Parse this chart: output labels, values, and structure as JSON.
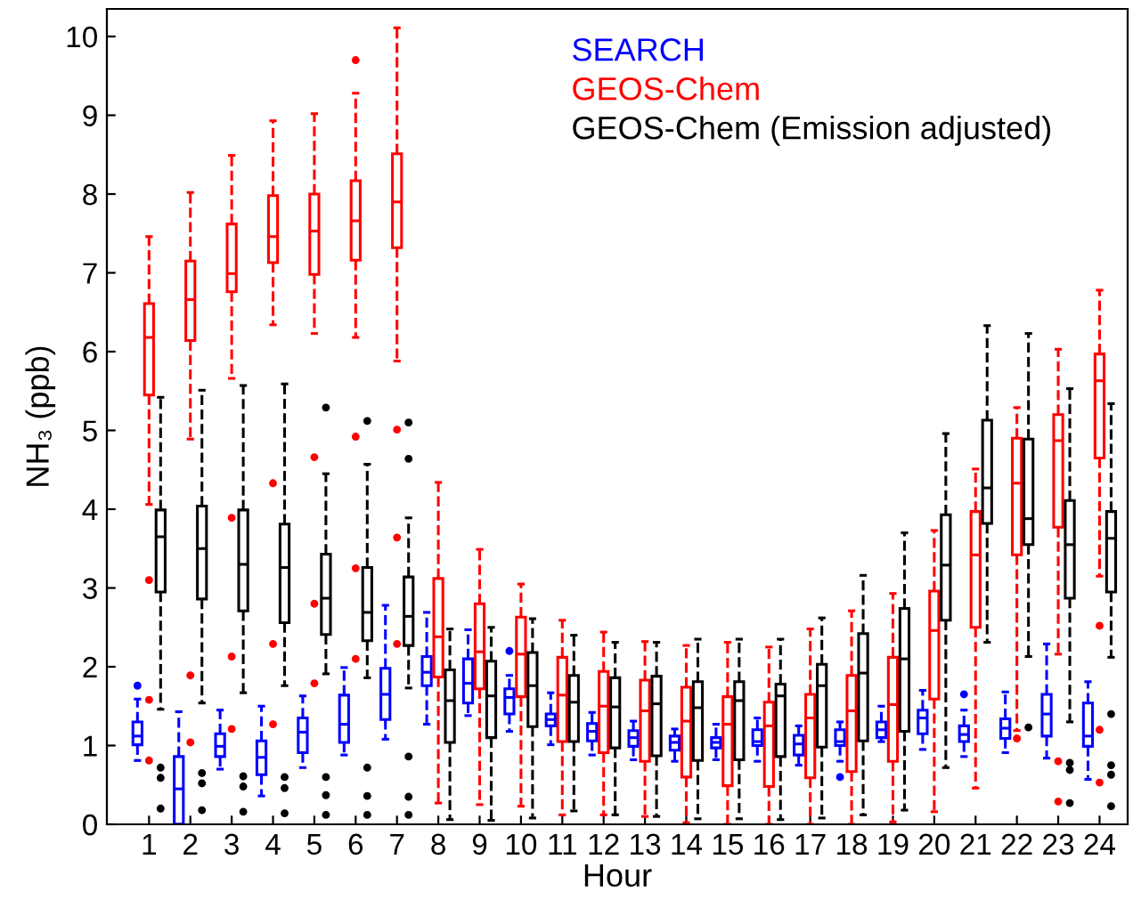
{
  "chart_data": {
    "type": "box",
    "xlabel": "Hour",
    "ylabel": "NH₃ (ppb)",
    "categories": [
      "1",
      "2",
      "3",
      "4",
      "5",
      "6",
      "7",
      "8",
      "9",
      "10",
      "11",
      "12",
      "13",
      "14",
      "15",
      "16",
      "17",
      "18",
      "19",
      "20",
      "21",
      "22",
      "23",
      "24"
    ],
    "ylim": [
      0,
      10.35
    ],
    "yticks": [
      0,
      1,
      2,
      3,
      4,
      5,
      6,
      7,
      8,
      9,
      10
    ],
    "grid": false,
    "line_style": "dashed",
    "series": [
      {
        "name": "SEARCH",
        "color": "#0000ff",
        "boxes": [
          {
            "low": 0.81,
            "q1": 1.01,
            "median": 1.12,
            "q3": 1.3,
            "high": 1.59,
            "outliers": [
              1.76
            ]
          },
          {
            "low": 0,
            "q1": 0,
            "median": 0.45,
            "q3": 0.86,
            "high": 1.43
          },
          {
            "low": 0.7,
            "q1": 0.86,
            "median": 0.99,
            "q3": 1.15,
            "high": 1.45
          },
          {
            "low": 0.36,
            "q1": 0.63,
            "median": 0.85,
            "q3": 1.06,
            "high": 1.5
          },
          {
            "low": 0.72,
            "q1": 0.91,
            "median": 1.17,
            "q3": 1.35,
            "high": 1.63
          },
          {
            "low": 0.88,
            "q1": 1.04,
            "median": 1.27,
            "q3": 1.64,
            "high": 1.99
          },
          {
            "low": 1.08,
            "q1": 1.33,
            "median": 1.65,
            "q3": 1.98,
            "high": 2.78
          },
          {
            "low": 1.27,
            "q1": 1.76,
            "median": 1.93,
            "q3": 2.13,
            "high": 2.69
          },
          {
            "low": 1.38,
            "q1": 1.54,
            "median": 1.79,
            "q3": 2.1,
            "high": 2.47
          },
          {
            "low": 1.18,
            "q1": 1.4,
            "median": 1.61,
            "q3": 1.72,
            "high": 1.89,
            "outliers": [
              2.2
            ]
          },
          {
            "low": 1.01,
            "q1": 1.25,
            "median": 1.33,
            "q3": 1.4,
            "high": 1.67
          },
          {
            "low": 0.88,
            "q1": 1.06,
            "median": 1.18,
            "q3": 1.28,
            "high": 1.42
          },
          {
            "low": 0.82,
            "q1": 0.99,
            "median": 1.1,
            "q3": 1.19,
            "high": 1.31
          },
          {
            "low": 0.8,
            "q1": 0.94,
            "median": 1.04,
            "q3": 1.12,
            "high": 1.21
          },
          {
            "low": 0.82,
            "q1": 0.97,
            "median": 1.04,
            "q3": 1.1,
            "high": 1.27
          },
          {
            "low": 0.8,
            "q1": 1.0,
            "median": 1.05,
            "q3": 1.2,
            "high": 1.35
          },
          {
            "low": 0.75,
            "q1": 0.88,
            "median": 1.02,
            "q3": 1.13,
            "high": 1.25
          },
          {
            "low": 0.8,
            "q1": 1.0,
            "median": 1.05,
            "q3": 1.2,
            "high": 1.3,
            "outliers": [
              0.6
            ]
          },
          {
            "low": 1.05,
            "q1": 1.1,
            "median": 1.2,
            "q3": 1.3,
            "high": 1.5
          },
          {
            "low": 0.95,
            "q1": 1.15,
            "median": 1.35,
            "q3": 1.45,
            "high": 1.7
          },
          {
            "low": 0.86,
            "q1": 1.05,
            "median": 1.14,
            "q3": 1.25,
            "high": 1.45,
            "outliers": [
              1.65
            ]
          },
          {
            "low": 0.91,
            "q1": 1.09,
            "median": 1.22,
            "q3": 1.34,
            "high": 1.68
          },
          {
            "low": 0.84,
            "q1": 1.12,
            "median": 1.4,
            "q3": 1.65,
            "high": 2.29
          },
          {
            "low": 0.57,
            "q1": 0.99,
            "median": 1.12,
            "q3": 1.54,
            "high": 1.81
          }
        ]
      },
      {
        "name": "GEOS-Chem",
        "color": "#ff0000",
        "boxes": [
          {
            "low": 4.06,
            "q1": 5.45,
            "median": 6.18,
            "q3": 6.61,
            "high": 7.46,
            "outliers": [
              3.1,
              1.58,
              0.81
            ]
          },
          {
            "low": 4.89,
            "q1": 6.14,
            "median": 6.66,
            "q3": 7.15,
            "high": 8.02,
            "outliers": [
              1.89,
              1.04
            ]
          },
          {
            "low": 5.66,
            "q1": 6.76,
            "median": 6.99,
            "q3": 7.62,
            "high": 8.49,
            "outliers": [
              3.89,
              2.13,
              1.21
            ]
          },
          {
            "low": 6.34,
            "q1": 7.13,
            "median": 7.46,
            "q3": 7.98,
            "high": 8.93,
            "outliers": [
              4.33,
              2.29,
              1.27
            ]
          },
          {
            "low": 6.23,
            "q1": 6.98,
            "median": 7.53,
            "q3": 8.0,
            "high": 9.02,
            "outliers": [
              4.66,
              2.8,
              1.79
            ]
          },
          {
            "low": 6.18,
            "q1": 7.16,
            "median": 7.66,
            "q3": 8.17,
            "high": 9.28,
            "outliers": [
              9.7,
              4.92,
              3.25,
              2.1
            ]
          },
          {
            "low": 5.88,
            "q1": 7.32,
            "median": 7.9,
            "q3": 8.51,
            "high": 10.11,
            "outliers": [
              5.01,
              3.64,
              2.29
            ]
          },
          {
            "low": 0.27,
            "q1": 1.87,
            "median": 2.38,
            "q3": 3.12,
            "high": 4.34
          },
          {
            "low": 0.25,
            "q1": 1.72,
            "median": 2.19,
            "q3": 2.8,
            "high": 3.49
          },
          {
            "low": 0.23,
            "q1": 1.62,
            "median": 2.16,
            "q3": 2.63,
            "high": 3.05
          },
          {
            "low": 0.12,
            "q1": 1.05,
            "median": 1.64,
            "q3": 2.12,
            "high": 2.59
          },
          {
            "low": 0.12,
            "q1": 0.91,
            "median": 1.5,
            "q3": 1.94,
            "high": 2.44
          },
          {
            "low": 0.1,
            "q1": 0.8,
            "median": 1.44,
            "q3": 1.83,
            "high": 2.32
          },
          {
            "low": 0.02,
            "q1": 0.6,
            "median": 1.31,
            "q3": 1.74,
            "high": 2.27
          },
          {
            "low": 0,
            "q1": 0.49,
            "median": 1.27,
            "q3": 1.62,
            "high": 2.31
          },
          {
            "low": 0,
            "q1": 0.48,
            "median": 1.25,
            "q3": 1.55,
            "high": 2.25
          },
          {
            "low": 0,
            "q1": 0.59,
            "median": 1.35,
            "q3": 1.65,
            "high": 2.48
          },
          {
            "low": 0,
            "q1": 0.67,
            "median": 1.44,
            "q3": 1.89,
            "high": 2.71
          },
          {
            "low": 0.03,
            "q1": 0.8,
            "median": 1.52,
            "q3": 2.12,
            "high": 2.93
          },
          {
            "low": 0.16,
            "q1": 1.59,
            "median": 2.46,
            "q3": 2.96,
            "high": 3.73
          },
          {
            "low": 0.46,
            "q1": 2.5,
            "median": 3.42,
            "q3": 3.97,
            "high": 4.51
          },
          {
            "low": 1.19,
            "q1": 3.42,
            "median": 4.33,
            "q3": 4.9,
            "high": 5.29,
            "outliers": [
              1.09
            ]
          },
          {
            "low": 2.16,
            "q1": 3.77,
            "median": 4.87,
            "q3": 5.2,
            "high": 6.03,
            "outliers": [
              0.8,
              0.29
            ]
          },
          {
            "low": 3.15,
            "q1": 4.65,
            "median": 5.63,
            "q3": 5.97,
            "high": 6.78,
            "outliers": [
              2.52,
              1.2,
              0.53
            ]
          }
        ]
      },
      {
        "name": "GEOS-Chem (Emission adjusted)",
        "color": "#000000",
        "boxes": [
          {
            "low": 1.46,
            "q1": 2.95,
            "median": 3.65,
            "q3": 3.99,
            "high": 5.42,
            "outliers": [
              0.72,
              0.59,
              0.2
            ]
          },
          {
            "low": 1.54,
            "q1": 2.86,
            "median": 3.5,
            "q3": 4.04,
            "high": 5.51,
            "outliers": [
              0.65,
              0.52,
              0.18
            ]
          },
          {
            "low": 1.67,
            "q1": 2.71,
            "median": 3.3,
            "q3": 3.99,
            "high": 5.57,
            "outliers": [
              0.61,
              0.48,
              0.16
            ]
          },
          {
            "low": 1.76,
            "q1": 2.56,
            "median": 3.26,
            "q3": 3.81,
            "high": 5.59,
            "outliers": [
              0.6,
              0.46,
              0.14
            ]
          },
          {
            "low": 1.91,
            "q1": 2.41,
            "median": 2.87,
            "q3": 3.43,
            "high": 4.45,
            "outliers": [
              5.29,
              0.6,
              0.37,
              0.12
            ]
          },
          {
            "low": 1.86,
            "q1": 2.33,
            "median": 2.69,
            "q3": 3.26,
            "high": 4.57,
            "outliers": [
              5.12,
              0.72,
              0.36,
              0.12
            ]
          },
          {
            "low": 1.73,
            "q1": 2.27,
            "median": 2.64,
            "q3": 3.14,
            "high": 3.89,
            "outliers": [
              5.1,
              4.64,
              0.86,
              0.35,
              0.12
            ]
          },
          {
            "low": 0.06,
            "q1": 1.04,
            "median": 1.57,
            "q3": 1.96,
            "high": 2.48
          },
          {
            "low": 0.05,
            "q1": 1.1,
            "median": 1.63,
            "q3": 2.07,
            "high": 2.5
          },
          {
            "low": 0.08,
            "q1": 1.24,
            "median": 1.76,
            "q3": 2.18,
            "high": 2.61
          },
          {
            "low": 0.17,
            "q1": 1.05,
            "median": 1.55,
            "q3": 1.89,
            "high": 2.4
          },
          {
            "low": 0.12,
            "q1": 0.97,
            "median": 1.49,
            "q3": 1.86,
            "high": 2.31
          },
          {
            "low": 0.1,
            "q1": 0.87,
            "median": 1.53,
            "q3": 1.88,
            "high": 2.31
          },
          {
            "low": 0.07,
            "q1": 0.81,
            "median": 1.48,
            "q3": 1.81,
            "high": 2.35
          },
          {
            "low": 0.07,
            "q1": 0.82,
            "median": 1.57,
            "q3": 1.81,
            "high": 2.35
          },
          {
            "low": 0.06,
            "q1": 0.86,
            "median": 1.63,
            "q3": 1.78,
            "high": 2.35
          },
          {
            "low": 0.08,
            "q1": 0.98,
            "median": 1.76,
            "q3": 2.03,
            "high": 2.62
          },
          {
            "low": 0.12,
            "q1": 1.06,
            "median": 1.92,
            "q3": 2.42,
            "high": 3.16
          },
          {
            "low": 0.18,
            "q1": 1.18,
            "median": 2.1,
            "q3": 2.74,
            "high": 3.7
          },
          {
            "low": 0.72,
            "q1": 2.59,
            "median": 3.29,
            "q3": 3.93,
            "high": 4.96
          },
          {
            "low": 2.31,
            "q1": 3.82,
            "median": 4.27,
            "q3": 5.13,
            "high": 6.33
          },
          {
            "low": 2.13,
            "q1": 3.55,
            "median": 3.88,
            "q3": 4.89,
            "high": 6.23,
            "outliers": [
              1.23
            ]
          },
          {
            "low": 1.3,
            "q1": 2.87,
            "median": 3.55,
            "q3": 4.11,
            "high": 5.53,
            "outliers": [
              0.78,
              0.69,
              0.27
            ]
          },
          {
            "low": 2.12,
            "q1": 2.95,
            "median": 3.63,
            "q3": 3.97,
            "high": 5.34,
            "outliers": [
              1.4,
              0.75,
              0.63,
              0.23
            ]
          }
        ]
      }
    ]
  }
}
